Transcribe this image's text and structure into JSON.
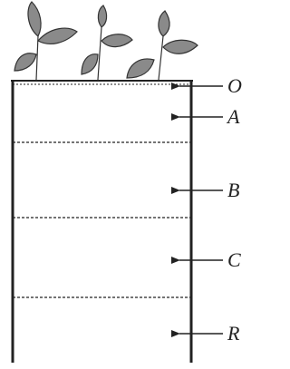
{
  "horizons": [
    {
      "label": "O"
    },
    {
      "label": "A"
    },
    {
      "label": "B"
    },
    {
      "label": "C"
    },
    {
      "label": "R"
    }
  ]
}
